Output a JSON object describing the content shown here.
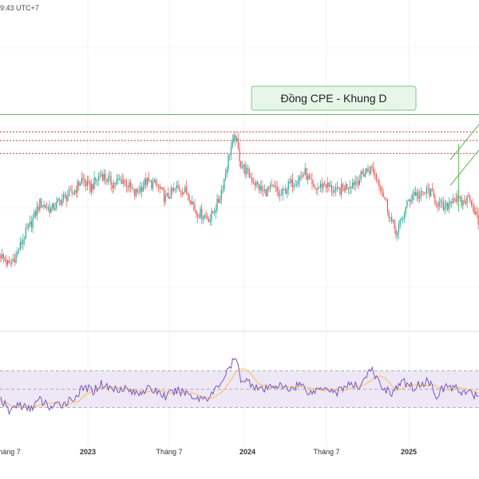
{
  "header": {
    "timestamp": "9:43 UTC+7"
  },
  "colors": {
    "up": "#26a69a",
    "down": "#ef5350",
    "rsi_line": "#7e57c2",
    "rsi_ma": "#f6c445",
    "rsi_band": "#ede7f6",
    "resistance_solid": "#5cb85c",
    "resistance_dotted": "#e53935",
    "annotation_bg": "#e8f5e9",
    "annotation_border": "#81c784"
  },
  "chart_data": [
    {
      "type": "candlestick",
      "title": "Đồng CPE - Khung D",
      "x_ticks": [
        {
          "label": "háng 7",
          "bold": false
        },
        {
          "label": "2023",
          "bold": true
        },
        {
          "label": "Tháng 7",
          "bold": false
        },
        {
          "label": "2024",
          "bold": true
        },
        {
          "label": "Tháng 7",
          "bold": false
        },
        {
          "label": "2025",
          "bold": true
        }
      ],
      "price_path": [
        [
          0,
          70
        ],
        [
          6,
          60
        ],
        [
          12,
          72
        ],
        [
          16,
          85
        ],
        [
          22,
          100
        ],
        [
          28,
          118
        ],
        [
          36,
          112
        ],
        [
          44,
          122
        ],
        [
          52,
          128
        ],
        [
          58,
          140
        ],
        [
          64,
          132
        ],
        [
          72,
          145
        ],
        [
          80,
          136
        ],
        [
          88,
          140
        ],
        [
          96,
          126
        ],
        [
          104,
          138
        ],
        [
          112,
          134
        ],
        [
          118,
          122
        ],
        [
          126,
          132
        ],
        [
          134,
          128
        ],
        [
          140,
          110
        ],
        [
          150,
          104
        ],
        [
          156,
          120
        ],
        [
          160,
          140
        ],
        [
          164,
          166
        ],
        [
          168,
          180
        ],
        [
          172,
          154
        ],
        [
          180,
          140
        ],
        [
          188,
          128
        ],
        [
          196,
          132
        ],
        [
          200,
          124
        ],
        [
          206,
          134
        ],
        [
          212,
          140
        ],
        [
          218,
          146
        ],
        [
          224,
          130
        ],
        [
          232,
          136
        ],
        [
          240,
          128
        ],
        [
          248,
          134
        ],
        [
          256,
          140
        ],
        [
          262,
          148
        ],
        [
          266,
          150
        ],
        [
          272,
          134
        ],
        [
          276,
          118
        ],
        [
          280,
          100
        ],
        [
          284,
          90
        ],
        [
          288,
          106
        ],
        [
          292,
          120
        ],
        [
          296,
          128
        ],
        [
          300,
          124
        ],
        [
          306,
          130
        ],
        [
          312,
          120
        ],
        [
          318,
          112
        ],
        [
          324,
          124
        ],
        [
          330,
          118
        ],
        [
          336,
          124
        ],
        [
          342,
          100
        ]
      ],
      "key_levels": {
        "solid_top": 200,
        "dotted": [
          184,
          176,
          164
        ]
      },
      "rsi_path": [
        [
          0,
          40
        ],
        [
          6,
          25
        ],
        [
          12,
          34
        ],
        [
          20,
          28
        ],
        [
          28,
          38
        ],
        [
          36,
          30
        ],
        [
          44,
          34
        ],
        [
          52,
          40
        ],
        [
          60,
          52
        ],
        [
          66,
          48
        ],
        [
          72,
          56
        ],
        [
          80,
          50
        ],
        [
          88,
          52
        ],
        [
          96,
          45
        ],
        [
          104,
          50
        ],
        [
          112,
          48
        ],
        [
          118,
          42
        ],
        [
          126,
          48
        ],
        [
          134,
          46
        ],
        [
          140,
          40
        ],
        [
          150,
          42
        ],
        [
          156,
          54
        ],
        [
          162,
          68
        ],
        [
          168,
          84
        ],
        [
          172,
          62
        ],
        [
          180,
          56
        ],
        [
          188,
          48
        ],
        [
          196,
          55
        ],
        [
          206,
          50
        ],
        [
          214,
          56
        ],
        [
          222,
          46
        ],
        [
          232,
          54
        ],
        [
          240,
          46
        ],
        [
          248,
          55
        ],
        [
          256,
          52
        ],
        [
          262,
          66
        ],
        [
          266,
          70
        ],
        [
          272,
          54
        ],
        [
          280,
          46
        ],
        [
          288,
          58
        ],
        [
          296,
          52
        ],
        [
          306,
          60
        ],
        [
          312,
          44
        ],
        [
          320,
          54
        ],
        [
          330,
          48
        ],
        [
          342,
          42
        ]
      ],
      "rsi_levels": [
        70,
        50,
        30
      ]
    }
  ]
}
